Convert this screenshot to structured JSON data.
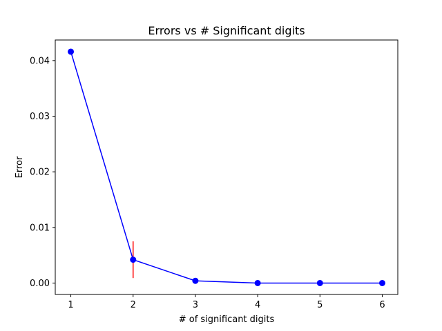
{
  "chart_data": {
    "type": "line",
    "title": "Errors vs # Significant digits",
    "xlabel": "# of significant digits",
    "ylabel": "Error",
    "xlim": [
      0.75,
      6.25
    ],
    "ylim": [
      -0.00205,
      0.0437
    ],
    "xticks": [
      1,
      2,
      3,
      4,
      5,
      6
    ],
    "xtick_labels": [
      "1",
      "2",
      "3",
      "4",
      "5",
      "6"
    ],
    "yticks": [
      0.0,
      0.01,
      0.02,
      0.03,
      0.04
    ],
    "ytick_labels": [
      "0.00",
      "0.01",
      "0.02",
      "0.03",
      "0.04"
    ],
    "grid": false,
    "series": [
      {
        "color": "#0000ff",
        "marker": "circle",
        "x": [
          1,
          2,
          3,
          4,
          5,
          6
        ],
        "y": [
          0.0416,
          0.0042,
          0.0004,
          0.0,
          0.0,
          0.0
        ],
        "yerr": [
          0.0,
          0.0033,
          0.0,
          0.0,
          0.0,
          0.0
        ],
        "errorbar_color": "#ff0000"
      }
    ]
  }
}
